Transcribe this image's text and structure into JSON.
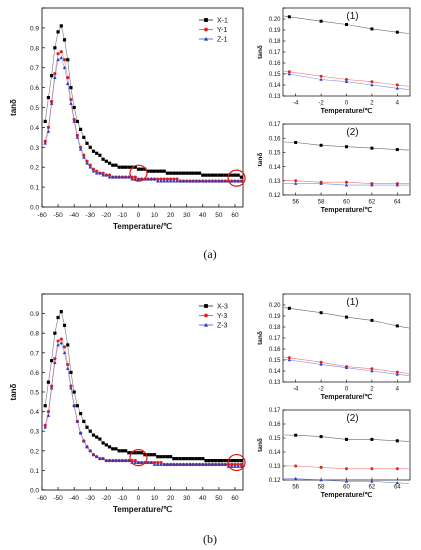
{
  "panels": [
    {
      "label": "(a)",
      "main": 0,
      "insets": [
        0,
        1
      ]
    },
    {
      "label": "(b)",
      "main": 1,
      "insets": [
        2,
        3
      ]
    }
  ],
  "chart_data": [
    {
      "type": "line",
      "xlabel": "Temperature/℃",
      "ylabel": "tanδ",
      "xlim": [
        -60,
        65
      ],
      "ylim": [
        0,
        1.0
      ],
      "xticks": [
        -60,
        -50,
        -40,
        -30,
        -20,
        -10,
        0,
        10,
        20,
        30,
        40,
        50,
        60
      ],
      "yticks": [
        0.0,
        0.1,
        0.2,
        0.3,
        0.4,
        0.5,
        0.6,
        0.7,
        0.8,
        0.9,
        1.0
      ],
      "ytick_labels": [
        "0.0",
        "0.1",
        "0.2",
        "0.3",
        "0.4",
        "0.5",
        "0.6",
        "0.7",
        "0.8",
        "0.9",
        ""
      ],
      "legend_position": "top-right",
      "highlight_circles": [
        {
          "x": 0,
          "y": 0.17
        },
        {
          "x": 61,
          "y": 0.145
        }
      ],
      "x": [
        -58,
        -56,
        -54,
        -52,
        -50,
        -48,
        -46,
        -44,
        -42,
        -40,
        -38,
        -36,
        -34,
        -32,
        -30,
        -28,
        -26,
        -24,
        -22,
        -20,
        -18,
        -16,
        -14,
        -12,
        -10,
        -8,
        -6,
        -4,
        -2,
        0,
        2,
        4,
        6,
        8,
        10,
        12,
        14,
        16,
        18,
        20,
        22,
        24,
        26,
        28,
        30,
        32,
        34,
        36,
        38,
        40,
        42,
        44,
        46,
        48,
        50,
        52,
        54,
        56,
        58,
        60,
        62,
        64
      ],
      "series": [
        {
          "name": "X-1",
          "color": "#000000",
          "marker": "square",
          "values": [
            0.43,
            0.55,
            0.66,
            0.8,
            0.88,
            0.91,
            0.84,
            0.74,
            0.6,
            0.5,
            0.43,
            0.39,
            0.35,
            0.32,
            0.3,
            0.28,
            0.27,
            0.26,
            0.24,
            0.23,
            0.22,
            0.21,
            0.21,
            0.2,
            0.2,
            0.2,
            0.2,
            0.2,
            0.2,
            0.19,
            0.19,
            0.19,
            0.18,
            0.18,
            0.18,
            0.18,
            0.18,
            0.18,
            0.17,
            0.17,
            0.17,
            0.17,
            0.17,
            0.17,
            0.17,
            0.17,
            0.17,
            0.17,
            0.17,
            0.16,
            0.16,
            0.16,
            0.16,
            0.16,
            0.16,
            0.16,
            0.16,
            0.16,
            0.16,
            0.16,
            0.16,
            0.15
          ]
        },
        {
          "name": "Y-1",
          "color": "#e02020",
          "marker": "circle",
          "values": [
            0.33,
            0.4,
            0.53,
            0.67,
            0.77,
            0.78,
            0.74,
            0.65,
            0.54,
            0.44,
            0.36,
            0.3,
            0.26,
            0.23,
            0.21,
            0.19,
            0.18,
            0.17,
            0.17,
            0.16,
            0.16,
            0.15,
            0.15,
            0.15,
            0.15,
            0.15,
            0.15,
            0.15,
            0.15,
            0.14,
            0.14,
            0.14,
            0.14,
            0.14,
            0.14,
            0.14,
            0.14,
            0.14,
            0.14,
            0.14,
            0.14,
            0.14,
            0.13,
            0.13,
            0.13,
            0.13,
            0.13,
            0.13,
            0.13,
            0.13,
            0.13,
            0.13,
            0.13,
            0.13,
            0.13,
            0.13,
            0.13,
            0.13,
            0.13,
            0.13,
            0.13,
            0.13
          ]
        },
        {
          "name": "Z-1",
          "color": "#2a3cc8",
          "marker": "triangle",
          "values": [
            0.32,
            0.38,
            0.52,
            0.65,
            0.74,
            0.75,
            0.7,
            0.62,
            0.52,
            0.43,
            0.35,
            0.29,
            0.25,
            0.22,
            0.2,
            0.18,
            0.17,
            0.17,
            0.16,
            0.16,
            0.15,
            0.15,
            0.15,
            0.15,
            0.15,
            0.15,
            0.15,
            0.14,
            0.14,
            0.14,
            0.14,
            0.14,
            0.14,
            0.14,
            0.14,
            0.13,
            0.13,
            0.13,
            0.13,
            0.13,
            0.13,
            0.13,
            0.13,
            0.13,
            0.13,
            0.13,
            0.13,
            0.13,
            0.13,
            0.13,
            0.13,
            0.13,
            0.13,
            0.13,
            0.13,
            0.13,
            0.13,
            0.13,
            0.13,
            0.13,
            0.13,
            0.13
          ]
        }
      ]
    },
    {
      "type": "line",
      "xlabel": "Temperature/℃",
      "ylabel": "tanδ",
      "xlim": [
        -60,
        65
      ],
      "ylim": [
        0,
        1.0
      ],
      "xticks": [
        -60,
        -50,
        -40,
        -30,
        -20,
        -10,
        0,
        10,
        20,
        30,
        40,
        50,
        60
      ],
      "yticks": [
        0.0,
        0.1,
        0.2,
        0.3,
        0.4,
        0.5,
        0.6,
        0.7,
        0.8,
        0.9,
        1.0
      ],
      "ytick_labels": [
        "0.0",
        "0.1",
        "0.2",
        "0.3",
        "0.4",
        "0.5",
        "0.6",
        "0.7",
        "0.8",
        "0.9",
        ""
      ],
      "legend_position": "top-right",
      "highlight_circles": [
        {
          "x": 0,
          "y": 0.165
        },
        {
          "x": 61,
          "y": 0.14
        }
      ],
      "x": [
        -58,
        -56,
        -54,
        -52,
        -50,
        -48,
        -46,
        -44,
        -42,
        -40,
        -38,
        -36,
        -34,
        -32,
        -30,
        -28,
        -26,
        -24,
        -22,
        -20,
        -18,
        -16,
        -14,
        -12,
        -10,
        -8,
        -6,
        -4,
        -2,
        0,
        2,
        4,
        6,
        8,
        10,
        12,
        14,
        16,
        18,
        20,
        22,
        24,
        26,
        28,
        30,
        32,
        34,
        36,
        38,
        40,
        42,
        44,
        46,
        48,
        50,
        52,
        54,
        56,
        58,
        60,
        62,
        64
      ],
      "series": [
        {
          "name": "X-3",
          "color": "#000000",
          "marker": "square",
          "values": [
            0.43,
            0.55,
            0.66,
            0.8,
            0.88,
            0.91,
            0.84,
            0.74,
            0.6,
            0.5,
            0.43,
            0.39,
            0.35,
            0.32,
            0.3,
            0.28,
            0.27,
            0.26,
            0.24,
            0.23,
            0.22,
            0.21,
            0.21,
            0.2,
            0.2,
            0.2,
            0.19,
            0.19,
            0.19,
            0.19,
            0.19,
            0.18,
            0.18,
            0.18,
            0.18,
            0.17,
            0.17,
            0.17,
            0.17,
            0.17,
            0.16,
            0.16,
            0.16,
            0.16,
            0.16,
            0.16,
            0.16,
            0.16,
            0.16,
            0.16,
            0.15,
            0.15,
            0.15,
            0.15,
            0.15,
            0.15,
            0.15,
            0.15,
            0.15,
            0.15,
            0.15,
            0.15
          ]
        },
        {
          "name": "Y-3",
          "color": "#e02020",
          "marker": "circle",
          "values": [
            0.33,
            0.4,
            0.53,
            0.67,
            0.76,
            0.77,
            0.73,
            0.64,
            0.53,
            0.43,
            0.35,
            0.29,
            0.25,
            0.22,
            0.2,
            0.18,
            0.17,
            0.16,
            0.16,
            0.15,
            0.15,
            0.15,
            0.15,
            0.15,
            0.15,
            0.15,
            0.15,
            0.15,
            0.15,
            0.14,
            0.14,
            0.14,
            0.14,
            0.14,
            0.14,
            0.14,
            0.14,
            0.13,
            0.13,
            0.13,
            0.13,
            0.13,
            0.13,
            0.13,
            0.13,
            0.13,
            0.13,
            0.13,
            0.13,
            0.13,
            0.13,
            0.13,
            0.13,
            0.13,
            0.13,
            0.13,
            0.13,
            0.13,
            0.13,
            0.13,
            0.13,
            0.13
          ]
        },
        {
          "name": "Z-3",
          "color": "#2a3cc8",
          "marker": "triangle",
          "values": [
            0.32,
            0.38,
            0.52,
            0.65,
            0.74,
            0.75,
            0.7,
            0.62,
            0.52,
            0.43,
            0.35,
            0.29,
            0.25,
            0.22,
            0.2,
            0.18,
            0.17,
            0.16,
            0.16,
            0.15,
            0.15,
            0.15,
            0.15,
            0.15,
            0.15,
            0.15,
            0.15,
            0.14,
            0.14,
            0.14,
            0.14,
            0.14,
            0.14,
            0.14,
            0.13,
            0.13,
            0.13,
            0.13,
            0.13,
            0.13,
            0.13,
            0.13,
            0.13,
            0.13,
            0.13,
            0.13,
            0.13,
            0.13,
            0.13,
            0.13,
            0.13,
            0.13,
            0.13,
            0.13,
            0.13,
            0.13,
            0.13,
            0.12,
            0.12,
            0.12,
            0.12,
            0.12
          ]
        }
      ]
    },
    {
      "type": "line",
      "title": "(1)",
      "xlabel": "Temperature/℃",
      "ylabel": "tanδ",
      "xlim": [
        -5,
        5
      ],
      "ylim": [
        0.13,
        0.21
      ],
      "xticks": [
        -4,
        -2,
        0,
        2,
        4
      ],
      "yticks": [
        0.13,
        0.14,
        0.15,
        0.16,
        0.17,
        0.18,
        0.19,
        0.2,
        0.21
      ],
      "ytick_labels": [
        "0.13",
        "0.14",
        "0.15",
        "0.16",
        "0.17",
        "0.18",
        "0.19",
        "0.20",
        ""
      ],
      "x": [
        -4.5,
        -2,
        0,
        2,
        4
      ],
      "series": [
        {
          "name": "X-1",
          "color": "#000000",
          "marker": "square",
          "values": [
            0.202,
            0.198,
            0.195,
            0.191,
            0.188
          ]
        },
        {
          "name": "Y-1",
          "color": "#e02020",
          "marker": "circle",
          "values": [
            0.152,
            0.148,
            0.145,
            0.143,
            0.14
          ]
        },
        {
          "name": "Z-1",
          "color": "#2a3cc8",
          "marker": "triangle",
          "values": [
            0.15,
            0.145,
            0.143,
            0.14,
            0.137
          ]
        }
      ]
    },
    {
      "type": "line",
      "title": "(2)",
      "xlabel": "Temperature/℃",
      "ylabel": "tanδ",
      "xlim": [
        55,
        65
      ],
      "ylim": [
        0.12,
        0.17
      ],
      "xticks": [
        56,
        58,
        60,
        62,
        64
      ],
      "yticks": [
        0.12,
        0.13,
        0.14,
        0.15,
        0.16,
        0.17
      ],
      "ytick_labels": [
        "0.12",
        "0.13",
        "0.14",
        "0.15",
        "0.16",
        "0.17"
      ],
      "x": [
        56,
        58,
        60,
        62,
        64
      ],
      "series": [
        {
          "name": "X-1",
          "color": "#000000",
          "marker": "square",
          "values": [
            0.157,
            0.155,
            0.154,
            0.153,
            0.152
          ]
        },
        {
          "name": "Y-1",
          "color": "#e02020",
          "marker": "circle",
          "values": [
            0.13,
            0.129,
            0.129,
            0.128,
            0.128
          ]
        },
        {
          "name": "Z-1",
          "color": "#2a3cc8",
          "marker": "triangle",
          "values": [
            0.128,
            0.128,
            0.127,
            0.127,
            0.127
          ]
        }
      ]
    },
    {
      "type": "line",
      "title": "(1)",
      "xlabel": "Temperature/℃",
      "ylabel": "tanδ",
      "xlim": [
        -5,
        5
      ],
      "ylim": [
        0.13,
        0.21
      ],
      "xticks": [
        -4,
        -2,
        0,
        2,
        4
      ],
      "yticks": [
        0.13,
        0.14,
        0.15,
        0.16,
        0.17,
        0.18,
        0.19,
        0.2,
        0.21
      ],
      "ytick_labels": [
        "0.13",
        "0.14",
        "0.15",
        "0.16",
        "0.17",
        "0.18",
        "0.19",
        "0.20",
        ""
      ],
      "x": [
        -4.5,
        -2,
        0,
        2,
        4
      ],
      "series": [
        {
          "name": "X-3",
          "color": "#000000",
          "marker": "square",
          "values": [
            0.197,
            0.193,
            0.189,
            0.186,
            0.181
          ]
        },
        {
          "name": "Y-3",
          "color": "#e02020",
          "marker": "circle",
          "values": [
            0.152,
            0.148,
            0.144,
            0.142,
            0.139
          ]
        },
        {
          "name": "Z-3",
          "color": "#2a3cc8",
          "marker": "triangle",
          "values": [
            0.15,
            0.146,
            0.143,
            0.14,
            0.137
          ]
        }
      ]
    },
    {
      "type": "line",
      "title": "(2)",
      "xlabel": "Temperature/℃",
      "ylabel": "tanδ",
      "xlim": [
        55,
        65
      ],
      "ylim": [
        0.12,
        0.17
      ],
      "xticks": [
        56,
        58,
        60,
        62,
        64
      ],
      "yticks": [
        0.12,
        0.13,
        0.14,
        0.15,
        0.16,
        0.17
      ],
      "ytick_labels": [
        "0.12",
        "0.13",
        "0.14",
        "0.15",
        "0.16",
        "0.17"
      ],
      "x": [
        56,
        58,
        60,
        62,
        64
      ],
      "series": [
        {
          "name": "X-3",
          "color": "#000000",
          "marker": "square",
          "values": [
            0.152,
            0.151,
            0.149,
            0.149,
            0.148
          ]
        },
        {
          "name": "Y-3",
          "color": "#e02020",
          "marker": "circle",
          "values": [
            0.13,
            0.129,
            0.128,
            0.128,
            0.128
          ]
        },
        {
          "name": "Z-3",
          "color": "#2a3cc8",
          "marker": "triangle",
          "values": [
            0.121,
            0.12,
            0.119,
            0.119,
            0.118
          ]
        }
      ]
    }
  ]
}
